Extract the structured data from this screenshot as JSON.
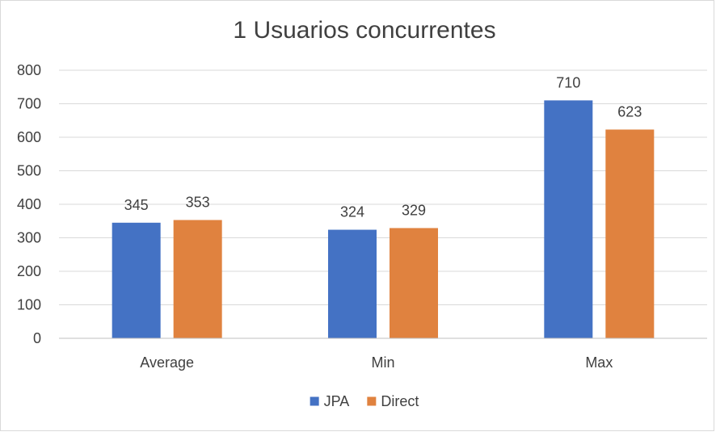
{
  "chart_data": {
    "type": "bar",
    "title": "1 Usuarios concurrentes",
    "xlabel": "",
    "ylabel": "",
    "categories": [
      "Average",
      "Min",
      "Max"
    ],
    "series": [
      {
        "name": "JPA",
        "values": [
          345,
          324,
          710
        ],
        "color": "#4472c4"
      },
      {
        "name": "Direct",
        "values": [
          353,
          329,
          623
        ],
        "color": "#e0823f"
      }
    ],
    "ylim": [
      0,
      800
    ],
    "yticks": [
      0,
      100,
      200,
      300,
      400,
      500,
      600,
      700,
      800
    ],
    "grid": true,
    "legend": "bottom",
    "data_labels": true,
    "gridline_color": "#d9d9d9",
    "axis_color": "#bfbfbf"
  }
}
